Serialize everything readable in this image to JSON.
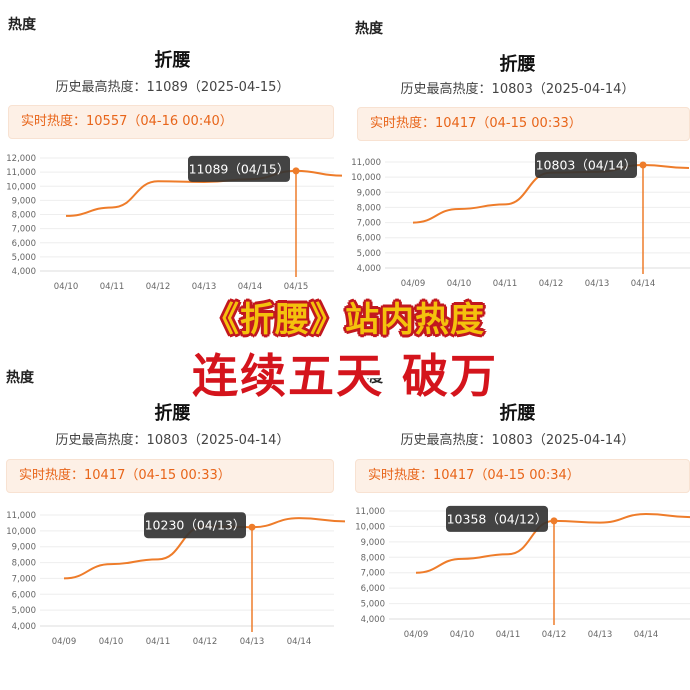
{
  "panels": [
    {
      "section_label": "热度",
      "title": "折腰",
      "history_label": "历史最高热度：",
      "history_value": "11089",
      "history_date": "（2025-04-15）",
      "realtime_label": "实时热度：",
      "realtime_value": "10557",
      "realtime_time": "（04-16 00:40）",
      "tooltip": "11089（04/15）",
      "chart_data": {
        "type": "line",
        "x": [
          "04/10",
          "04/11",
          "04/12",
          "04/13",
          "04/14",
          "04/15",
          "04/16"
        ],
        "x_tick_labels": [
          "04/10",
          "04/11",
          "04/12",
          "04/13",
          "04/14",
          "04/15"
        ],
        "y_ticks": [
          "12,000",
          "11,000",
          "10,000",
          "9,000",
          "8,000",
          "7,000",
          "6,000",
          "5,000",
          "4,000"
        ],
        "ylim": [
          4000,
          12000
        ],
        "series": [
          {
            "values": [
              7900,
              8500,
              10350,
              10300,
              10500,
              11089,
              10750
            ]
          }
        ],
        "highlight_index": 5,
        "line_color": "#ee7c2a"
      }
    },
    {
      "section_label": "热度",
      "title": "折腰",
      "history_label": "历史最高热度：",
      "history_value": "10803",
      "history_date": "（2025-04-14）",
      "realtime_label": "实时热度：",
      "realtime_value": "10417",
      "realtime_time": "（04-15 00:33）",
      "tooltip": "10803（04/14）",
      "chart_data": {
        "type": "line",
        "x": [
          "04/09",
          "04/10",
          "04/11",
          "04/12",
          "04/13",
          "04/14",
          "04/15"
        ],
        "x_tick_labels": [
          "04/09",
          "04/10",
          "04/11",
          "04/12",
          "04/13",
          "04/14"
        ],
        "y_ticks": [
          "11,000",
          "10,000",
          "9,000",
          "8,000",
          "7,000",
          "6,000",
          "5,000",
          "4,000"
        ],
        "ylim": [
          4000,
          11000
        ],
        "series": [
          {
            "values": [
              7000,
              7900,
              8200,
              10300,
              10350,
              10803,
              10600
            ]
          }
        ],
        "highlight_index": 5,
        "line_color": "#ee7c2a"
      }
    },
    {
      "section_label": "热度",
      "title": "折腰",
      "history_label": "历史最高热度：",
      "history_value": "10803",
      "history_date": "（2025-04-14）",
      "realtime_label": "实时热度：",
      "realtime_value": "10417",
      "realtime_time": "（04-15 00:33）",
      "tooltip": "10230（04/13）",
      "chart_data": {
        "type": "line",
        "x": [
          "04/09",
          "04/10",
          "04/11",
          "04/12",
          "04/13",
          "04/14",
          "04/15"
        ],
        "x_tick_labels": [
          "04/09",
          "04/10",
          "04/11",
          "04/12",
          "04/13",
          "04/14"
        ],
        "y_ticks": [
          "11,000",
          "10,000",
          "9,000",
          "8,000",
          "7,000",
          "6,000",
          "5,000",
          "4,000"
        ],
        "ylim": [
          4000,
          11000
        ],
        "series": [
          {
            "values": [
              7000,
              7900,
              8200,
              10300,
              10230,
              10803,
              10600
            ]
          }
        ],
        "highlight_index": 4,
        "line_color": "#ee7c2a"
      }
    },
    {
      "section_label": "热度",
      "title": "折腰",
      "history_label": "历史最高热度：",
      "history_value": "10803",
      "history_date": "（2025-04-14）",
      "realtime_label": "实时热度：",
      "realtime_value": "10417",
      "realtime_time": "（04-15 00:34）",
      "tooltip": "10358（04/12）",
      "chart_data": {
        "type": "line",
        "x": [
          "04/09",
          "04/10",
          "04/11",
          "04/12",
          "04/13",
          "04/14",
          "04/15"
        ],
        "x_tick_labels": [
          "04/09",
          "04/10",
          "04/11",
          "04/12",
          "04/13",
          "04/14"
        ],
        "y_ticks": [
          "11,000",
          "10,000",
          "9,000",
          "8,000",
          "7,000",
          "6,000",
          "5,000",
          "4,000"
        ],
        "ylim": [
          4000,
          11000
        ],
        "series": [
          {
            "values": [
              7000,
              7900,
              8200,
              10358,
              10250,
              10803,
              10600
            ]
          }
        ],
        "highlight_index": 3,
        "line_color": "#ee7c2a"
      }
    }
  ],
  "overlay": {
    "line1": "《折腰》站内热度",
    "line2": "连续五天 破万"
  }
}
